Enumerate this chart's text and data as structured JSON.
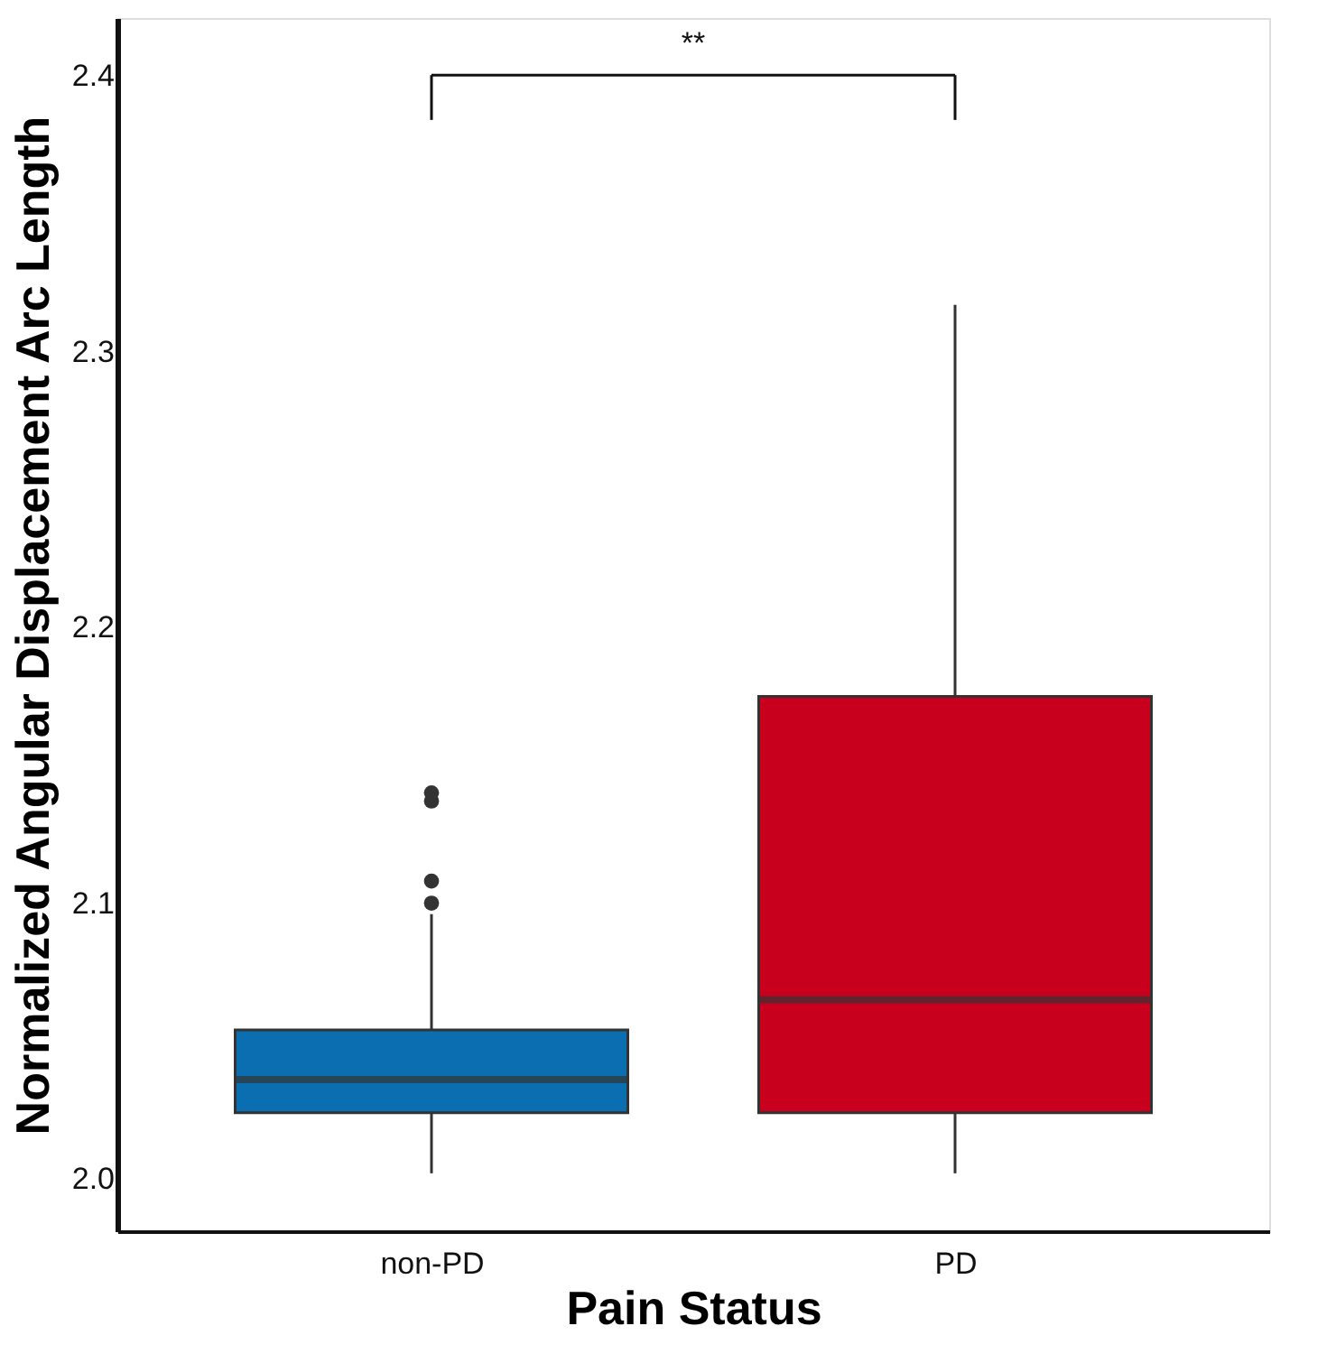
{
  "chart_data": {
    "type": "box",
    "xlabel": "Pain Status",
    "ylabel": "Normalized Angular Displacement Arc Length",
    "categories": [
      "non-PD",
      "PD"
    ],
    "colors": [
      "#0a6eb0",
      "#c8001e"
    ],
    "boxes": [
      {
        "low": 2.002,
        "q1": 2.024,
        "median": 2.036,
        "q3": 2.054,
        "high": 2.096,
        "outliers": [
          2.1,
          2.108,
          2.137,
          2.14
        ]
      },
      {
        "low": 2.002,
        "q1": 2.024,
        "median": 2.065,
        "q3": 2.175,
        "high": 2.317
      }
    ],
    "ylim": [
      1.981,
      2.421
    ],
    "yticks": [
      {
        "value": 2.0,
        "label": "2.0"
      },
      {
        "value": 2.1,
        "label": "2.1"
      },
      {
        "value": 2.2,
        "label": "2.2"
      },
      {
        "value": 2.3,
        "label": "2.3"
      },
      {
        "value": 2.4,
        "label": "2.4"
      }
    ],
    "annotations": [
      "**"
    ],
    "grid": false
  }
}
